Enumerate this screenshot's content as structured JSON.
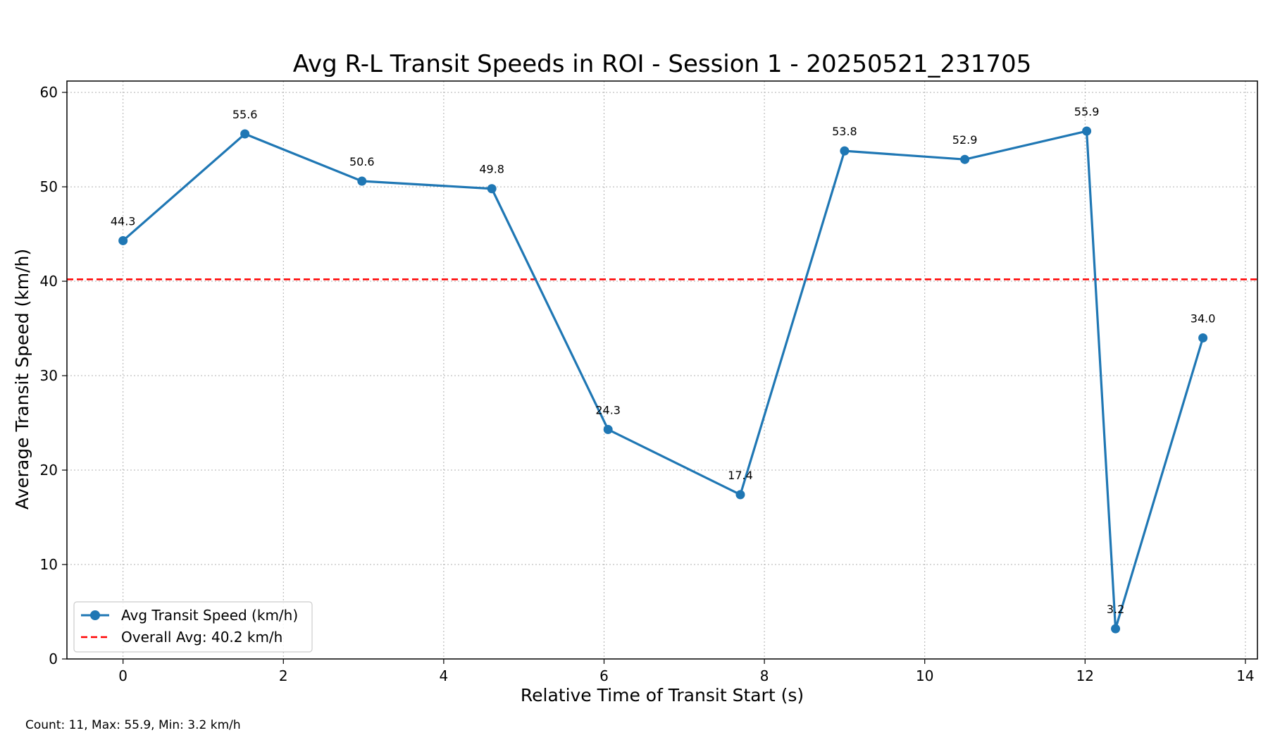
{
  "chart_data": {
    "type": "line",
    "title": "Avg R-L Transit Speeds in ROI - Session 1 - 20250521_231705",
    "xlabel": "Relative Time of Transit Start (s)",
    "ylabel": "Average Transit Speed (km/h)",
    "xlim": [
      -0.7,
      14.15
    ],
    "ylim": [
      0,
      61.2
    ],
    "xticks": [
      0,
      2,
      4,
      6,
      8,
      10,
      12,
      14
    ],
    "yticks": [
      0,
      10,
      20,
      30,
      40,
      50,
      60
    ],
    "grid": true,
    "legend_position": "lower-left",
    "series": [
      {
        "name": "Avg Transit Speed (km/h)",
        "color": "#1f77b4",
        "marker": "circle",
        "x": [
          0,
          1.52,
          2.98,
          4.6,
          6.05,
          7.7,
          9.0,
          10.5,
          12.02,
          12.38,
          13.47
        ],
        "y": [
          44.3,
          55.6,
          50.6,
          49.8,
          24.3,
          17.4,
          53.8,
          52.9,
          55.9,
          3.2,
          34.0
        ],
        "labels": [
          "44.3",
          "55.6",
          "50.6",
          "49.8",
          "24.3",
          "17.4",
          "53.8",
          "52.9",
          "55.9",
          "3.2",
          "34.0"
        ]
      }
    ],
    "reference_line": {
      "name": "Overall Avg: 40.2 km/h",
      "y": 40.2,
      "color": "#ff0000",
      "style": "dashed"
    },
    "footer": "Count: 11, Max: 55.9, Min: 3.2 km/h"
  }
}
